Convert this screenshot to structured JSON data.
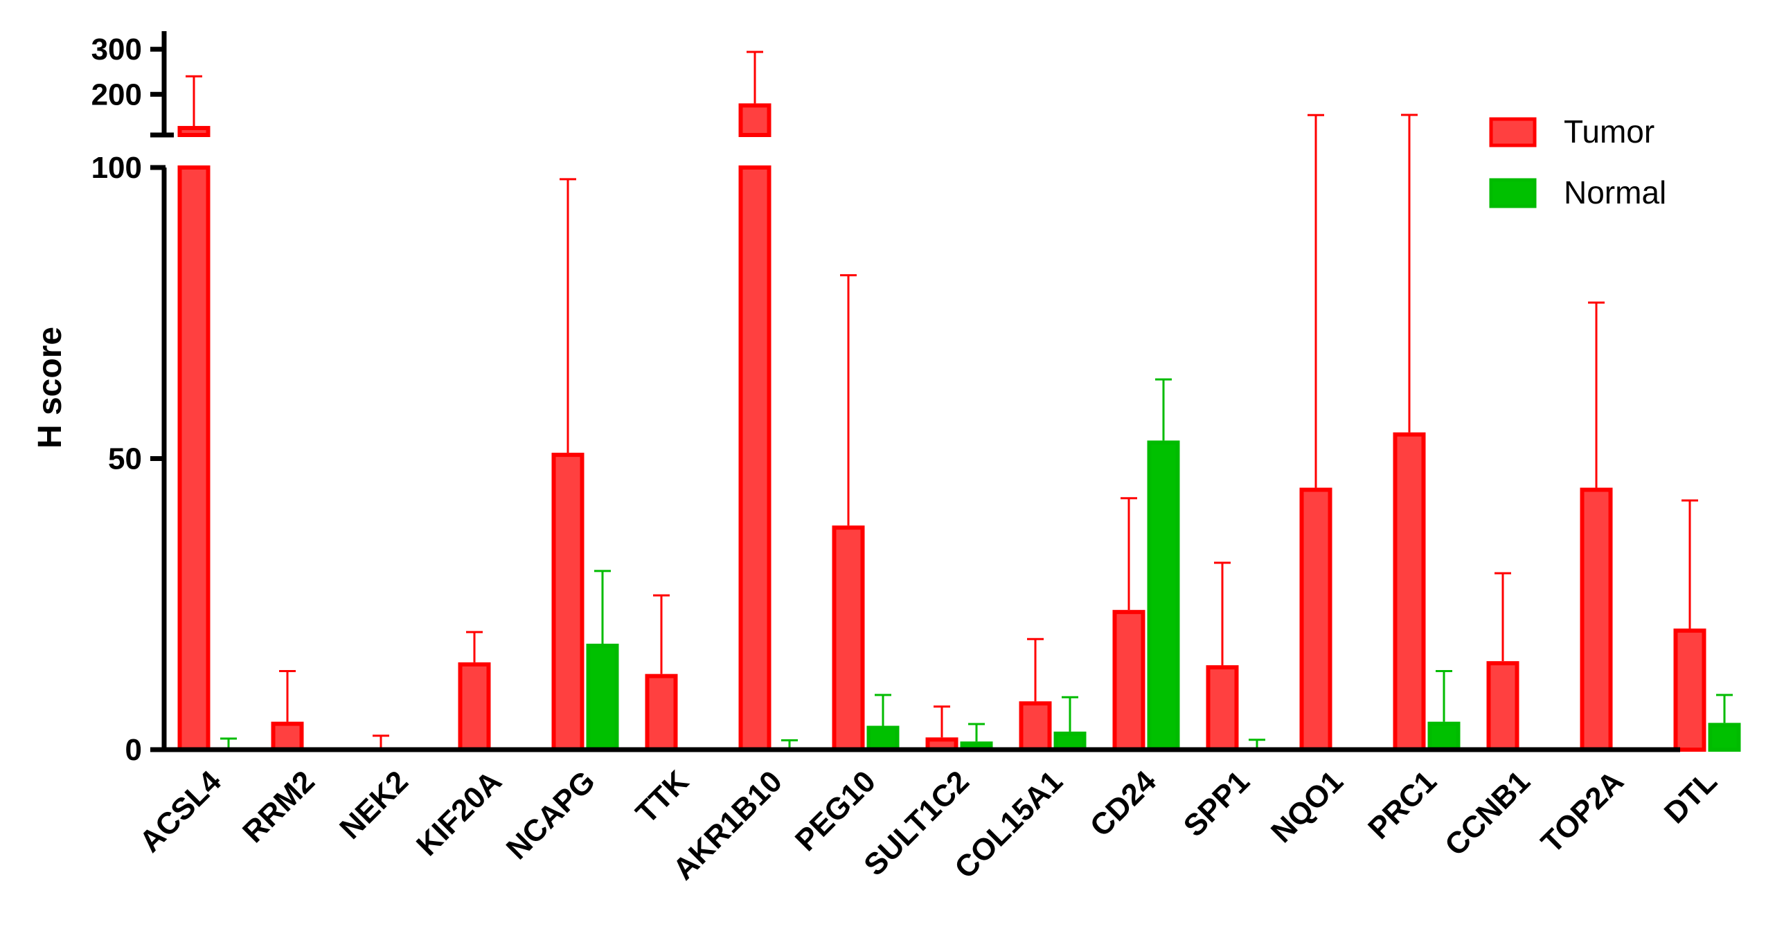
{
  "chart_data": {
    "type": "bar",
    "ylabel": "H score",
    "xlabel": "",
    "title": "",
    "y_axis_broken": true,
    "ylim_lower_segment": [
      0,
      100
    ],
    "ylim_upper_segment": [
      110,
      340
    ],
    "yticks_lower": [
      0,
      50,
      100
    ],
    "yticks_upper": [
      200,
      300
    ],
    "grid": false,
    "legend_position": "top-right",
    "categories": [
      "ACSL4",
      "RRM2",
      "NEK2",
      "KIF20A",
      "NCAPG",
      "TTK",
      "AKR1B10",
      "PEG10",
      "SULT1C2",
      "COL15A1",
      "CD24",
      "SPP1",
      "NQO1",
      "PRC1",
      "CCNB1",
      "TOP2A",
      "DTL"
    ],
    "series": [
      {
        "name": "Tumor",
        "color": "#ff0000",
        "fill": "#ff4040",
        "values": [
          130,
          4.8,
          0.3,
          15,
          51,
          13,
          180,
          38.5,
          2.1,
          8.3,
          24,
          14.5,
          45,
          54.5,
          15.2,
          45,
          20.8
        ],
        "errors": [
          110,
          8.7,
          2.1,
          5.2,
          47,
          13.5,
          125,
          43,
          5.3,
          10.7,
          19.2,
          17.6,
          109,
          100,
          15.1,
          31.8,
          22
        ]
      },
      {
        "name": "Normal",
        "color": "#00bb00",
        "fill": "#00c000",
        "values": [
          0.3,
          0,
          0,
          0,
          18.2,
          0,
          0.3,
          4.1,
          1.4,
          3.1,
          53.1,
          0.3,
          0,
          4.8,
          0,
          0,
          4.6
        ],
        "errors": [
          1.6,
          0,
          0,
          0,
          12.5,
          0,
          1.3,
          5.3,
          3,
          5.9,
          10.5,
          1.4,
          0,
          8.7,
          0,
          0,
          4.8
        ]
      }
    ]
  }
}
